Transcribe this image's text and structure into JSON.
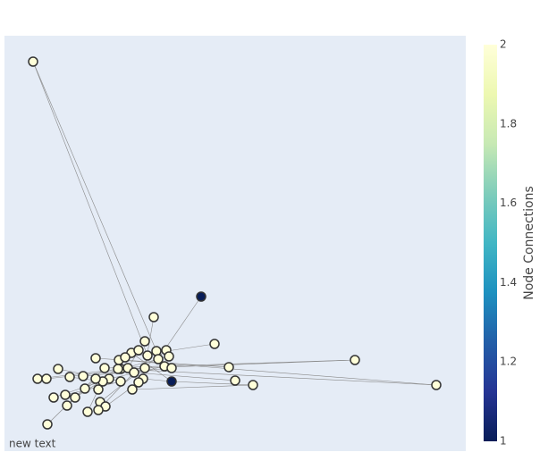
{
  "chart_data": {
    "type": "network",
    "annotation": "new text",
    "colorbar_title": "Node Connections",
    "x": [
      32,
      220,
      187,
      167,
      235,
      392,
      483,
      278,
      258,
      251,
      157,
      142,
      150,
      160,
      170,
      181,
      184,
      172,
      179,
      187,
      102,
      112,
      128,
      135,
      130,
      138,
      145,
      157,
      155,
      143,
      130,
      117,
      110,
      102,
      105,
      107,
      113,
      105,
      93,
      48,
      70,
      68,
      55,
      79,
      90,
      73,
      88,
      60,
      37,
      47,
      127,
      150
    ],
    "y": [
      436,
      173,
      78,
      150,
      120,
      102,
      74,
      74,
      79,
      94,
      123,
      110,
      113,
      107,
      112,
      113,
      106,
      103,
      95,
      93,
      104,
      93,
      102,
      105,
      92,
      93,
      88,
      93,
      81,
      69,
      78,
      81,
      78,
      81,
      69,
      55,
      50,
      46,
      44,
      30,
      51,
      63,
      60,
      60,
      70,
      83,
      84,
      92,
      81,
      81,
      92,
      77
    ],
    "values": [
      2,
      1,
      1,
      2,
      2,
      2,
      2,
      2,
      2,
      2,
      2,
      2,
      2,
      2,
      2,
      2,
      2,
      2,
      2,
      2,
      2,
      2,
      2,
      2,
      2,
      2,
      2,
      2,
      2,
      2,
      2,
      2,
      2,
      2,
      2,
      2,
      2,
      2,
      2,
      2,
      2,
      2,
      2,
      2,
      2,
      2,
      2,
      2,
      2,
      2,
      2,
      2
    ],
    "edges": [
      [
        0,
        13
      ],
      [
        0,
        14
      ],
      [
        1,
        17
      ],
      [
        3,
        27
      ],
      [
        5,
        21
      ],
      [
        5,
        24
      ],
      [
        6,
        22
      ],
      [
        6,
        50
      ],
      [
        7,
        29
      ],
      [
        8,
        26
      ],
      [
        9,
        20
      ],
      [
        4,
        23
      ],
      [
        2,
        28
      ],
      [
        2,
        11
      ],
      [
        10,
        25
      ],
      [
        39,
        21
      ],
      [
        48,
        25
      ],
      [
        47,
        30
      ],
      [
        42,
        31
      ],
      [
        40,
        33
      ],
      [
        38,
        34
      ],
      [
        36,
        51
      ],
      [
        37,
        26
      ],
      [
        45,
        32
      ],
      [
        43,
        24
      ],
      [
        41,
        30
      ],
      [
        44,
        50
      ],
      [
        49,
        27
      ],
      [
        35,
        15
      ],
      [
        46,
        19
      ],
      [
        12,
        22
      ],
      [
        16,
        24
      ],
      [
        18,
        31
      ],
      [
        2,
        7
      ]
    ],
    "xlim": [
      0,
      516
    ],
    "ylim": [
      0,
      465
    ],
    "colorlim": [
      1,
      2
    ],
    "colorticks": [
      1,
      1.2,
      1.4,
      1.6,
      1.8,
      2
    ],
    "colorscale": [
      "#081d58",
      "#253494",
      "#225ea8",
      "#1d91c0",
      "#41b6c4",
      "#7fcdbb",
      "#c7e9b4",
      "#edf8b1",
      "#ffffd9"
    ],
    "edge_color": "#888888",
    "node_outline": "#333333"
  }
}
